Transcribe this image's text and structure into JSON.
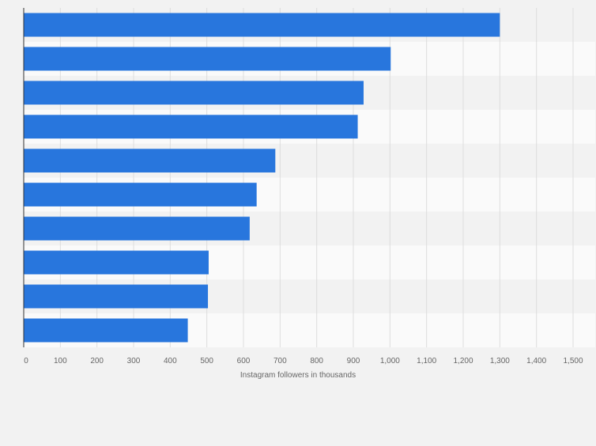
{
  "chart_data": {
    "type": "bar",
    "orientation": "horizontal",
    "categories": [
      "",
      "",
      "",
      "",
      "",
      "",
      "",
      "",
      "",
      ""
    ],
    "values": [
      1300,
      1002,
      928,
      912,
      687,
      636,
      617,
      505,
      503,
      448
    ],
    "xlabel": "Instagram followers in thousands",
    "ylabel": "",
    "xlim": [
      0,
      1500
    ],
    "xticks": [
      0,
      100,
      200,
      300,
      400,
      500,
      600,
      700,
      800,
      900,
      1000,
      1100,
      1200,
      1300,
      1400,
      1500
    ],
    "xtick_labels": [
      "0",
      "100",
      "200",
      "300",
      "400",
      "500",
      "600",
      "700",
      "800",
      "900",
      "1,000",
      "1,100",
      "1,200",
      "1,300",
      "1,400",
      "1,500"
    ],
    "grid": true,
    "colors": {
      "bar": "#2876dd",
      "band_light": "#fafafa",
      "band_dark": "#f2f2f2",
      "gridline": "#dddddd",
      "axis": "#333333"
    }
  }
}
